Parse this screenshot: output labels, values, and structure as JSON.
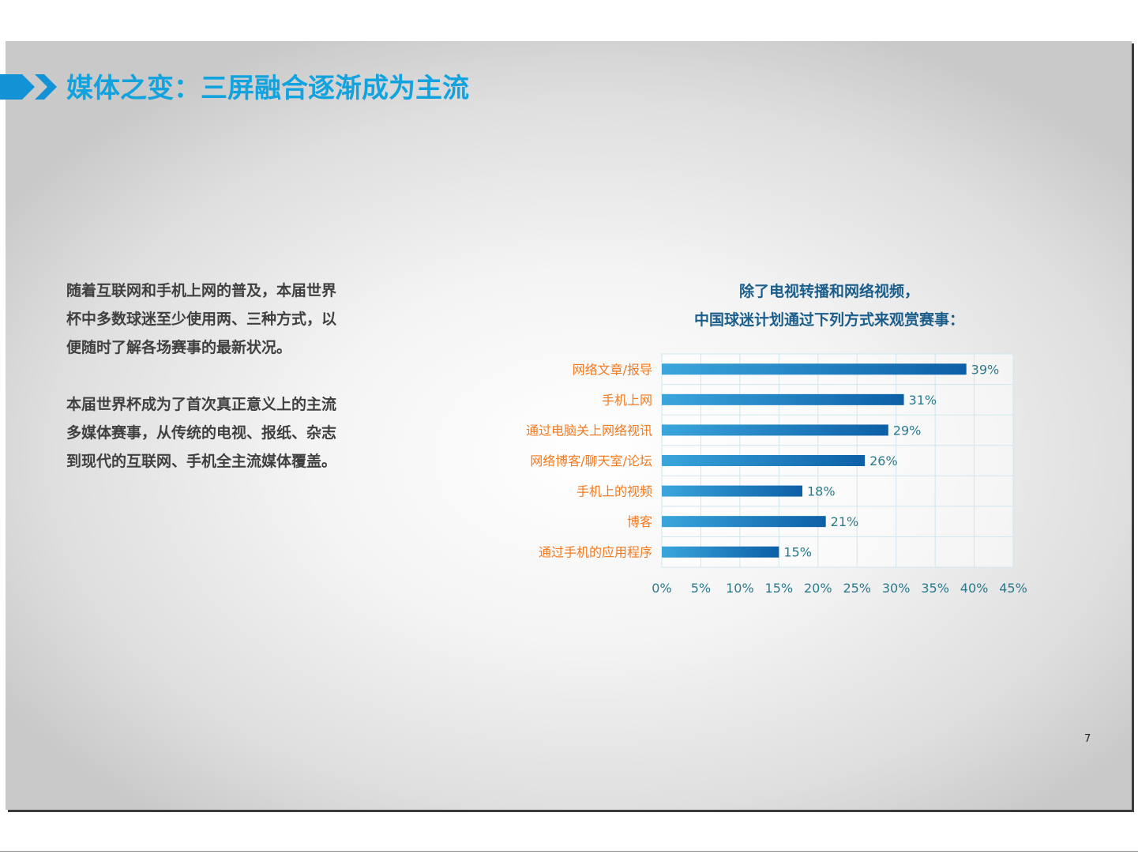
{
  "slide": {
    "title": "媒体之变：三屏融合逐渐成为主流",
    "paragraphs": [
      [
        "随着互联网和手机上网的普及，本届世界",
        "杯中多数球迷至少使用两、三种方式，以",
        "便随时了解各场赛事的最新状况。"
      ],
      [
        "本届世界杯成为了首次真正意义上的主流",
        "多媒体赛事，从传统的电视、报纸、杂志",
        "到现代的互联网、手机全主流媒体覆盖。"
      ]
    ],
    "page_number": "7",
    "colors": {
      "title": "#12a3df",
      "arrow": "#1392d6",
      "bar_start": "#3aa6dc",
      "bar_end": "#0d5fa6",
      "category_label": "#f47a20",
      "value_label": "#2a7a8c",
      "chart_title": "#1b5e8c"
    }
  },
  "chart_data": {
    "type": "bar",
    "orientation": "horizontal",
    "title": [
      "除了电视转播和网络视频，",
      "中国球迷计划通过下列方式来观赏赛事："
    ],
    "categories": [
      "网络文章/报导",
      "手机上网",
      "通过电脑关上网络视讯",
      "网络博客/聊天室/论坛",
      "手机上的视频",
      "博客",
      "通过手机的应用程序"
    ],
    "values": [
      39,
      31,
      29,
      26,
      18,
      21,
      15
    ],
    "value_labels": [
      "39%",
      "31%",
      "29%",
      "26%",
      "18%",
      "21%",
      "15%"
    ],
    "xlim": [
      0,
      45
    ],
    "x_ticks": [
      0,
      5,
      10,
      15,
      20,
      25,
      30,
      35,
      40,
      45
    ],
    "x_tick_labels": [
      "0%",
      "5%",
      "10%",
      "15%",
      "20%",
      "25%",
      "30%",
      "35%",
      "40%",
      "45%"
    ],
    "grid": true,
    "legend": "none"
  }
}
